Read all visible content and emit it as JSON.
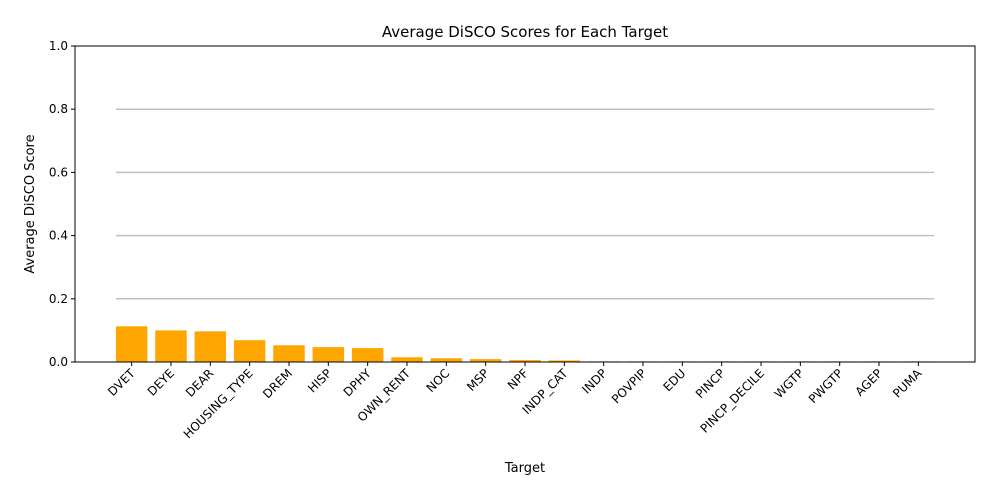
{
  "chart_data": {
    "type": "bar",
    "title": "Average DiSCO Scores for Each Target",
    "xlabel": "Target",
    "ylabel": "Average DiSCO Score",
    "ylim": [
      0,
      1
    ],
    "yticks": [
      0.0,
      0.2,
      0.4,
      0.6,
      0.8,
      1.0
    ],
    "ytick_labels": [
      "0.0",
      "0.2",
      "0.4",
      "0.6",
      "0.8",
      "1.0"
    ],
    "grid": "horizontal",
    "bar_color": "#FFA500",
    "grid_color": "#c0c0c0",
    "categories": [
      "DVET",
      "DEYE",
      "DEAR",
      "HOUSING_TYPE",
      "DREM",
      "HISP",
      "DPHY",
      "OWN_RENT",
      "NOC",
      "MSP",
      "NPF",
      "INDP_CAT",
      "INDP",
      "POVPIP",
      "EDU",
      "PINCP",
      "PINCP_DECILE",
      "WGTP",
      "PWGTP",
      "AGEP",
      "PUMA"
    ],
    "values": [
      0.113,
      0.1,
      0.097,
      0.069,
      0.053,
      0.047,
      0.044,
      0.015,
      0.012,
      0.009,
      0.006,
      0.005,
      0.002,
      0.002,
      0.002,
      0.002,
      0.002,
      0.002,
      0.002,
      0.002,
      0.002
    ]
  }
}
